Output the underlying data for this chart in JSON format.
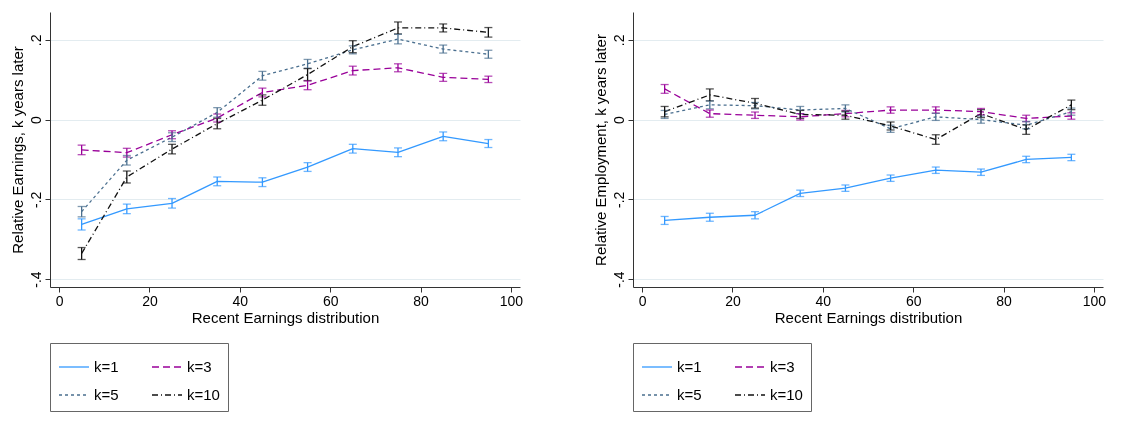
{
  "chart_data": [
    {
      "type": "line",
      "xlabel": "Recent Earnings distribution",
      "ylabel": "Relative Earnings, k years later",
      "x": [
        5,
        15,
        25,
        35,
        45,
        55,
        65,
        75,
        85,
        95
      ],
      "xlim": [
        -2,
        102
      ],
      "xticks": [
        0,
        20,
        40,
        60,
        80,
        100
      ],
      "ylim": [
        -0.42,
        0.27
      ],
      "yticks": [
        {
          "value": 0.2,
          "label": ".2"
        },
        {
          "value": 0,
          "label": "0"
        },
        {
          "value": -0.2,
          "label": "-.2"
        },
        {
          "value": -0.4,
          "label": "-.4"
        }
      ],
      "grid": "y",
      "legend": "bottom",
      "marker": "none",
      "series": [
        {
          "name": "k=1",
          "color": "#3399ff",
          "line_style": "solid",
          "values": [
            -0.263,
            -0.224,
            -0.21,
            -0.155,
            -0.157,
            -0.119,
            -0.073,
            -0.082,
            -0.042,
            -0.06
          ],
          "errors": [
            0.014,
            0.012,
            0.012,
            0.011,
            0.011,
            0.011,
            0.011,
            0.011,
            0.011,
            0.01
          ]
        },
        {
          "name": "k=3",
          "color": "#990099",
          "line_style": "dashed",
          "values": [
            -0.076,
            -0.083,
            -0.038,
            0.004,
            0.068,
            0.086,
            0.123,
            0.13,
            0.106,
            0.101
          ],
          "errors": [
            0.012,
            0.011,
            0.01,
            0.01,
            0.011,
            0.011,
            0.011,
            0.01,
            0.01,
            0.008
          ]
        },
        {
          "name": "k=5",
          "color": "#4a6f8f",
          "line_style": "dotted",
          "values": [
            -0.231,
            -0.102,
            -0.044,
            0.018,
            0.11,
            0.14,
            0.175,
            0.202,
            0.177,
            0.164
          ],
          "errors": [
            0.013,
            0.012,
            0.011,
            0.012,
            0.011,
            0.011,
            0.01,
            0.012,
            0.01,
            0.01
          ]
        },
        {
          "name": "k=10",
          "color": "#111111",
          "line_style": "dashdot",
          "values": [
            -0.336,
            -0.144,
            -0.074,
            -0.01,
            0.049,
            0.113,
            0.183,
            0.23,
            0.23,
            0.219
          ],
          "errors": [
            0.015,
            0.015,
            0.012,
            0.013,
            0.013,
            0.015,
            0.015,
            0.015,
            0.01,
            0.012
          ]
        }
      ]
    },
    {
      "type": "line",
      "xlabel": "Recent Earnings distribution",
      "ylabel": "Relative Employment, k years later",
      "x": [
        5,
        15,
        25,
        35,
        45,
        55,
        65,
        75,
        85,
        95
      ],
      "xlim": [
        -2,
        102
      ],
      "xticks": [
        0,
        20,
        40,
        60,
        80,
        100
      ],
      "ylim": [
        -0.42,
        0.27
      ],
      "yticks": [
        {
          "value": 0.2,
          "label": ".2"
        },
        {
          "value": 0,
          "label": "0"
        },
        {
          "value": -0.2,
          "label": "-.2"
        },
        {
          "value": -0.4,
          "label": "-.4"
        }
      ],
      "grid": "y",
      "legend": "bottom",
      "marker": "none",
      "series": [
        {
          "name": "k=1",
          "color": "#3399ff",
          "line_style": "solid",
          "values": [
            -0.253,
            -0.245,
            -0.24,
            -0.185,
            -0.172,
            -0.147,
            -0.127,
            -0.132,
            -0.1,
            -0.095
          ],
          "errors": [
            0.01,
            0.01,
            0.009,
            0.008,
            0.008,
            0.008,
            0.008,
            0.008,
            0.008,
            0.008
          ]
        },
        {
          "name": "k=3",
          "color": "#990099",
          "line_style": "dashed",
          "values": [
            0.077,
            0.015,
            0.011,
            0.007,
            0.015,
            0.024,
            0.024,
            0.02,
            0.003,
            0.009
          ],
          "errors": [
            0.011,
            0.009,
            0.008,
            0.008,
            0.008,
            0.008,
            0.008,
            0.008,
            0.008,
            0.008
          ]
        },
        {
          "name": "k=5",
          "color": "#4a6f8f",
          "line_style": "dotted",
          "values": [
            0.013,
            0.037,
            0.035,
            0.024,
            0.028,
            -0.023,
            0.007,
            0.0,
            -0.014,
            0.02
          ],
          "errors": [
            0.01,
            0.01,
            0.008,
            0.009,
            0.009,
            0.009,
            0.009,
            0.009,
            0.009,
            0.009
          ]
        },
        {
          "name": "k=10",
          "color": "#111111",
          "line_style": "dashdot",
          "values": [
            0.02,
            0.062,
            0.041,
            0.013,
            0.011,
            -0.016,
            -0.05,
            0.015,
            -0.025,
            0.037
          ],
          "errors": [
            0.013,
            0.015,
            0.012,
            0.01,
            0.01,
            0.01,
            0.012,
            0.01,
            0.012,
            0.012
          ]
        }
      ]
    }
  ]
}
